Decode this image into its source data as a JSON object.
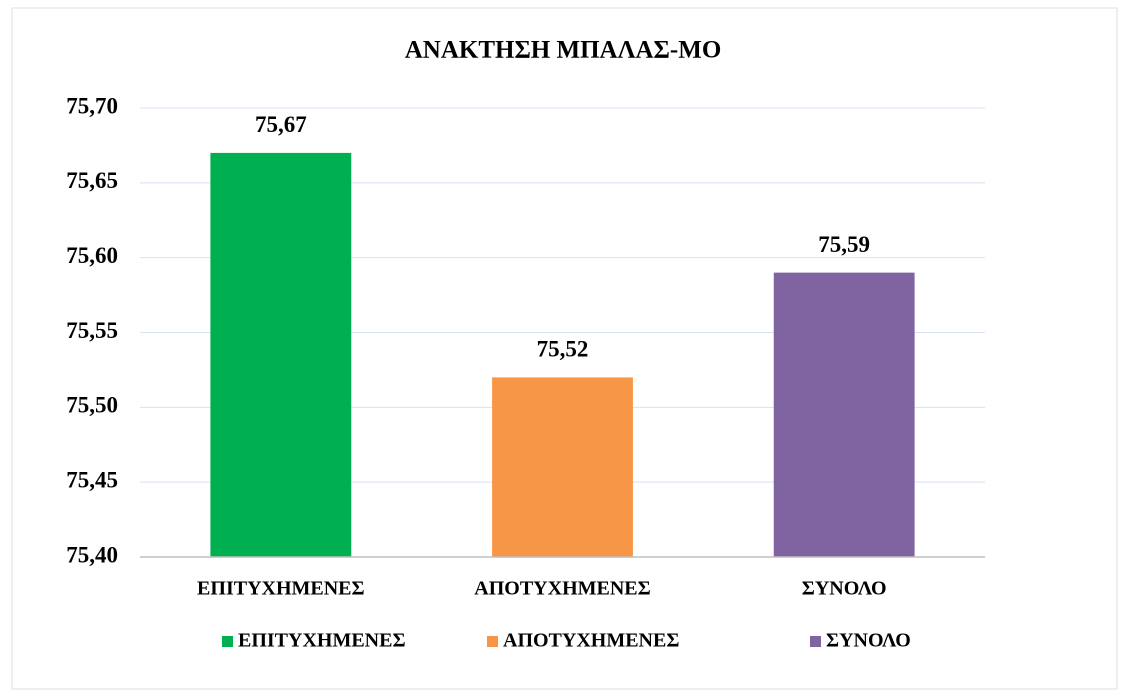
{
  "chart_data": {
    "type": "bar",
    "title": "ΑΝΑΚΤΗΣΗ ΜΠΑΛΑΣ-ΜΟ",
    "categories": [
      "ΕΠΙΤΥΧΗΜΕΝΕΣ",
      "ΑΠΟΤΥΧΗΜΕΝΕΣ",
      "ΣΥΝΟΛΟ"
    ],
    "values": [
      75.67,
      75.52,
      75.59
    ],
    "value_labels": [
      "75,67",
      "75,52",
      "75,59"
    ],
    "colors": [
      "#00b050",
      "#f79646",
      "#8064a2"
    ],
    "ylim": [
      75.4,
      75.7
    ],
    "yticks": [
      {
        "value": 75.4,
        "label": "75,40"
      },
      {
        "value": 75.45,
        "label": "75,45"
      },
      {
        "value": 75.5,
        "label": "75,50"
      },
      {
        "value": 75.55,
        "label": "75,55"
      },
      {
        "value": 75.6,
        "label": "75,60"
      },
      {
        "value": 75.65,
        "label": "75,65"
      },
      {
        "value": 75.7,
        "label": "75,70"
      }
    ],
    "grid": true,
    "legend": "bottom"
  }
}
